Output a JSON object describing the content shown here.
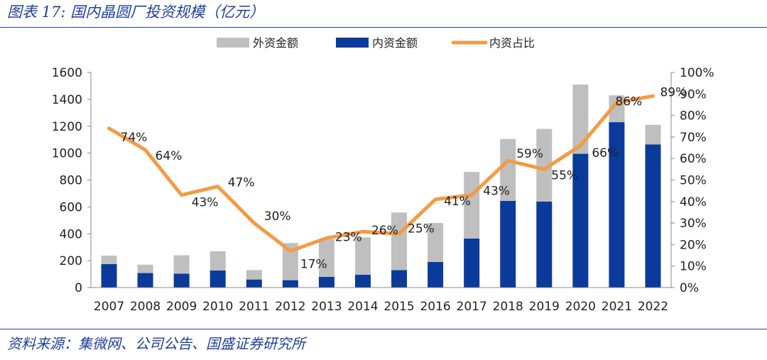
{
  "header": {
    "title": "图表 17:  国内晶圆厂投资规模（亿元）"
  },
  "footer": {
    "source": "资料来源：集微网、公司公告、国盛证券研究所"
  },
  "colors": {
    "foreign": "#bfbfbf",
    "domestic": "#0a3a9a",
    "ratio": "#f39b45",
    "accent": "#1f3f9a"
  },
  "chart_data": {
    "type": "bar",
    "stacked": true,
    "categories": [
      "2007",
      "2008",
      "2009",
      "2010",
      "2011",
      "2012",
      "2013",
      "2014",
      "2015",
      "2016",
      "2017",
      "2018",
      "2019",
      "2020",
      "2021",
      "2022"
    ],
    "series": [
      {
        "name": "外资金额",
        "type": "bar",
        "axis": "left",
        "values": [
          63,
          62,
          137,
          143,
          70,
          276,
          280,
          278,
          428,
          290,
          495,
          460,
          540,
          515,
          200,
          145
        ]
      },
      {
        "name": "内资金额",
        "type": "bar",
        "axis": "left",
        "values": [
          175,
          108,
          103,
          127,
          60,
          55,
          80,
          95,
          130,
          190,
          365,
          645,
          640,
          995,
          1230,
          1065
        ]
      },
      {
        "name": "内资占比",
        "type": "line",
        "axis": "right",
        "values": [
          74,
          64,
          43,
          47,
          30,
          17,
          23,
          26,
          25,
          41,
          43,
          59,
          55,
          66,
          86,
          89
        ],
        "labels": [
          "74%",
          "64%",
          "43%",
          "47%",
          "30%",
          "17%",
          "23%",
          "26%",
          "25%",
          "41%",
          "43%",
          "59%",
          "55%",
          "66%",
          "86%",
          "89%"
        ]
      }
    ],
    "y_left": {
      "min": 0,
      "max": 1600,
      "ticks": [
        "0",
        "200",
        "400",
        "600",
        "800",
        "1000",
        "1200",
        "1400",
        "1600"
      ]
    },
    "y_right": {
      "min": 0,
      "max": 100,
      "ticks": [
        "0%",
        "10%",
        "20%",
        "30%",
        "40%",
        "50%",
        "60%",
        "70%",
        "80%",
        "90%",
        "100%"
      ]
    },
    "legend": {
      "position": "top"
    },
    "grid": false
  }
}
